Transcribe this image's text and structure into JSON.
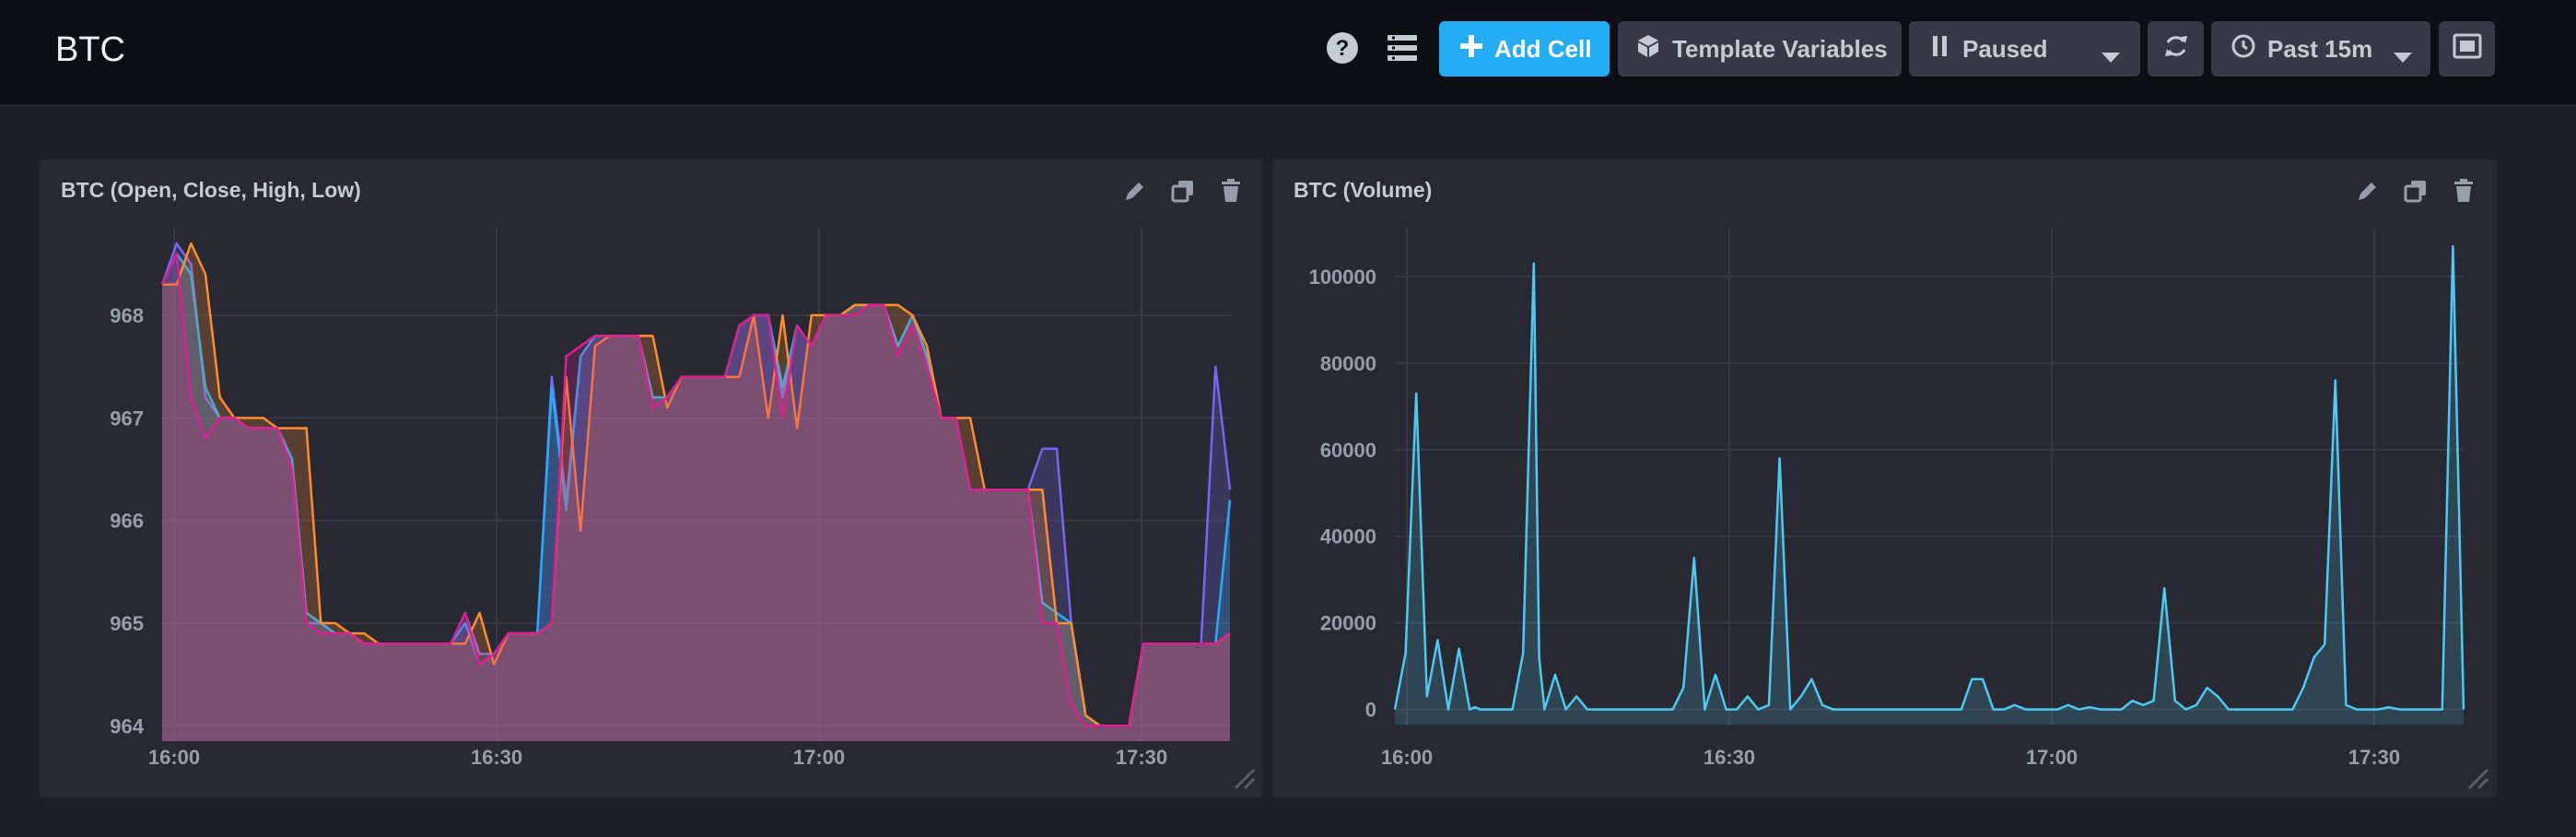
{
  "header": {
    "title": "BTC",
    "add_cell_label": "Add Cell",
    "template_variables_label": "Template Variables",
    "pause_label": "Paused",
    "time_range_label": "Past 15m"
  },
  "icons": {
    "help": "question-circle-icon",
    "dashboard_list": "list-icon",
    "add": "plus-icon",
    "template": "cube-icon",
    "pause": "pause-icon",
    "dropdown": "caret-down-icon",
    "refresh": "refresh-icon",
    "clock": "clock-icon",
    "fullscreen": "fullscreen-icon",
    "edit": "pencil-icon",
    "clone": "clone-icon",
    "delete": "trash-icon",
    "resize": "resize-handle-icon"
  },
  "colors": {
    "accent": "#22adf6",
    "series_open": "#7a65f2",
    "series_close": "#22adf6",
    "series_high": "#ff8c2e",
    "series_low": "#dc1f8c",
    "volume": "#4ec9f0"
  },
  "cells": [
    {
      "title": "BTC (Open, Close, High, Low)",
      "chart_data": {
        "type": "line",
        "fill": "area",
        "x_tick_labels": [
          "16:00",
          "16:30",
          "17:00",
          "17:30"
        ],
        "y_ticks": [
          964,
          965,
          966,
          967,
          968
        ],
        "ylim": [
          963.85,
          968.8
        ],
        "xlim": [
          0,
          100
        ],
        "series": [
          {
            "values": [
              968.3,
              968.7,
              968.5,
              967.2,
              967.0,
              967.0,
              966.9,
              966.9,
              966.9,
              966.5,
              965.0,
              965.0,
              964.9,
              964.9,
              964.8,
              964.8,
              964.8,
              964.8,
              964.8,
              964.8,
              964.8,
              965.1,
              964.7,
              964.7,
              964.9,
              964.9,
              964.9,
              967.4,
              966.2,
              967.6,
              967.8,
              967.8,
              967.8,
              967.8,
              967.2,
              967.2,
              967.4,
              967.4,
              967.4,
              967.4,
              967.9,
              968.0,
              968.0,
              967.2,
              967.9,
              967.7,
              968.0,
              968.0,
              968.1,
              968.1,
              968.1,
              967.7,
              968.0,
              967.6,
              967.0,
              967.0,
              966.3,
              966.3,
              966.3,
              966.3,
              966.3,
              966.7,
              966.7,
              965.0,
              964.1,
              964.0,
              964.0,
              964.0,
              964.8,
              964.8,
              964.8,
              964.8,
              964.8,
              967.5,
              966.3
            ]
          },
          {
            "values": [
              968.3,
              968.6,
              968.4,
              967.3,
              967.0,
              967.0,
              966.9,
              966.9,
              966.9,
              966.6,
              965.1,
              965.0,
              964.9,
              964.9,
              964.8,
              964.8,
              964.8,
              964.8,
              964.8,
              964.8,
              964.8,
              965.0,
              964.6,
              964.7,
              964.9,
              964.9,
              964.9,
              967.3,
              966.1,
              967.6,
              967.8,
              967.8,
              967.8,
              967.8,
              967.2,
              967.2,
              967.4,
              967.4,
              967.4,
              967.4,
              967.9,
              968.0,
              968.0,
              967.3,
              967.9,
              967.7,
              968.0,
              968.0,
              968.1,
              968.1,
              968.1,
              967.7,
              968.0,
              967.6,
              967.0,
              967.0,
              966.3,
              966.3,
              966.3,
              966.3,
              966.3,
              965.2,
              965.1,
              965.0,
              964.1,
              964.0,
              964.0,
              964.0,
              964.8,
              964.8,
              964.8,
              964.8,
              964.8,
              964.8,
              966.2
            ]
          },
          {
            "values": [
              968.3,
              968.3,
              968.7,
              968.4,
              967.2,
              967.0,
              967.0,
              967.0,
              966.9,
              966.9,
              966.9,
              965.0,
              965.0,
              964.9,
              964.9,
              964.8,
              964.8,
              964.8,
              964.8,
              964.8,
              964.8,
              964.8,
              965.1,
              964.6,
              964.9,
              964.9,
              964.9,
              965.0,
              967.4,
              965.9,
              967.7,
              967.8,
              967.8,
              967.8,
              967.8,
              967.1,
              967.4,
              967.4,
              967.4,
              967.4,
              967.4,
              968.0,
              967.0,
              968.0,
              966.9,
              968.0,
              968.0,
              968.0,
              968.1,
              968.1,
              968.1,
              968.1,
              968.0,
              967.7,
              967.0,
              967.0,
              967.0,
              966.3,
              966.3,
              966.3,
              966.3,
              966.3,
              965.0,
              965.0,
              964.1,
              964.0,
              964.0,
              964.0,
              964.8,
              964.8,
              964.8,
              964.8,
              964.8,
              964.8,
              964.9
            ]
          },
          {
            "values": [
              968.3,
              968.6,
              967.2,
              966.8,
              967.0,
              967.0,
              966.9,
              966.9,
              966.9,
              966.5,
              965.0,
              964.9,
              964.9,
              964.9,
              964.8,
              964.8,
              964.8,
              964.8,
              964.8,
              964.8,
              964.8,
              965.1,
              964.6,
              964.7,
              964.9,
              964.9,
              964.9,
              965.0,
              967.6,
              967.7,
              967.8,
              967.8,
              967.8,
              967.8,
              967.1,
              967.2,
              967.4,
              967.4,
              967.4,
              967.4,
              967.9,
              968.0,
              968.0,
              967.0,
              967.9,
              967.7,
              968.0,
              968.0,
              968.0,
              968.1,
              968.1,
              967.6,
              967.9,
              967.5,
              967.0,
              967.0,
              966.3,
              966.3,
              966.3,
              966.3,
              966.3,
              965.0,
              965.0,
              964.2,
              964.0,
              964.0,
              964.0,
              964.0,
              964.8,
              964.8,
              964.8,
              964.8,
              964.8,
              964.8,
              964.9
            ]
          }
        ]
      }
    },
    {
      "title": "BTC (Volume)",
      "chart_data": {
        "type": "area",
        "x_tick_labels": [
          "16:00",
          "16:30",
          "17:00",
          "17:30"
        ],
        "y_ticks": [
          0,
          20000,
          40000,
          60000,
          80000,
          100000
        ],
        "y_tick_labels": [
          "0",
          "20000",
          "40000",
          "60000",
          "80000",
          "100000"
        ],
        "ylim": [
          -3500,
          110000
        ],
        "xlim": [
          0,
          100
        ],
        "series": [
          {
            "x": [
              0,
              1,
              2,
              3,
              4,
              5,
              6,
              7,
              7.5,
              8,
              9,
              10,
              11,
              12,
              13,
              13.5,
              14,
              15,
              16,
              17,
              18,
              19,
              20,
              21,
              22,
              23,
              24,
              25,
              26,
              27,
              28,
              29,
              30,
              31,
              32,
              33,
              34,
              35,
              36,
              37,
              38,
              39,
              40,
              41,
              42,
              43,
              44,
              45,
              46,
              47,
              48,
              49,
              50,
              51,
              52,
              53,
              54,
              55,
              56,
              57,
              58,
              59,
              60,
              61,
              62,
              63,
              64,
              65,
              66,
              67,
              68,
              69,
              70,
              71,
              72,
              73,
              74,
              75,
              76,
              77,
              78,
              79,
              80,
              81,
              82,
              83,
              84,
              85,
              86,
              87,
              88,
              89,
              90,
              91,
              92,
              93,
              94,
              95,
              96,
              97,
              98,
              99,
              100
            ],
            "y": [
              0,
              13000,
              73000,
              3000,
              16000,
              0,
              14000,
              0,
              500,
              0,
              0,
              0,
              0,
              13000,
              103000,
              12000,
              0,
              8000,
              0,
              3000,
              0,
              0,
              0,
              0,
              0,
              0,
              0,
              0,
              0,
              5000,
              35000,
              0,
              8000,
              0,
              0,
              3000,
              0,
              1000,
              58000,
              0,
              3000,
              7000,
              1000,
              0,
              0,
              0,
              0,
              0,
              0,
              0,
              0,
              0,
              0,
              0,
              0,
              0,
              7000,
              7000,
              0,
              0,
              1000,
              0,
              0,
              0,
              0,
              1000,
              0,
              500,
              0,
              0,
              0,
              2000,
              1000,
              2000,
              28000,
              2000,
              0,
              1000,
              5000,
              3000,
              0,
              0,
              0,
              0,
              0,
              0,
              0,
              5000,
              12000,
              15000,
              76000,
              1000,
              0,
              0,
              0,
              500,
              0,
              0,
              0,
              0,
              0,
              107000,
              0
            ]
          }
        ]
      }
    }
  ]
}
